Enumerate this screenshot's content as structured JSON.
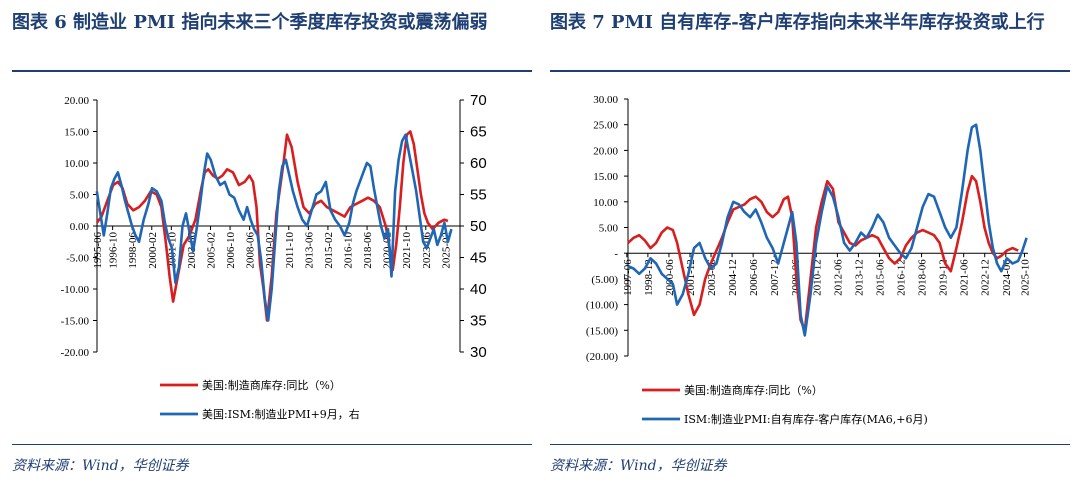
{
  "left": {
    "title": "图表 6 制造业 PMI 指向未来三个季度库存投资或震荡偏弱",
    "source": "资料来源：Wind，华创证券",
    "chart_data": {
      "type": "line",
      "title": "",
      "y_left": {
        "min": -20,
        "max": 20,
        "ticks": [
          "20.00",
          "15.00",
          "10.00",
          "5.00",
          "0.00",
          "-5.00",
          "-10.00",
          "-15.00",
          "-20.00"
        ]
      },
      "y_right": {
        "min": 30,
        "max": 70,
        "ticks": [
          "70",
          "65",
          "60",
          "55",
          "50",
          "45",
          "40",
          "35",
          "30"
        ]
      },
      "x_range": [
        1995.42,
        2026.33
      ],
      "x_ticks": [
        "1995-06",
        "1996-10",
        "1998-06",
        "2000-02",
        "2001-10",
        "2003-06",
        "2005-02",
        "2006-10",
        "2008-06",
        "2010-02",
        "2011-10",
        "2013-06",
        "2015-02",
        "2016-10",
        "2018-06",
        "2020-02",
        "2021-10",
        "2023-06",
        "2025-02"
      ],
      "series": [
        {
          "name": "美国:制造商库存:同比（%）",
          "color": "#d81e1e",
          "axis": "left",
          "x": [
            1995.4,
            1995.8,
            1996.3,
            1996.8,
            1997.2,
            1997.6,
            1998.0,
            1998.5,
            1999.0,
            1999.5,
            2000.0,
            2000.5,
            2000.9,
            2001.3,
            2001.6,
            2001.9,
            2002.3,
            2002.8,
            2003.3,
            2003.8,
            2004.3,
            2004.6,
            2004.9,
            2005.3,
            2005.7,
            2006.1,
            2006.5,
            2007.0,
            2007.5,
            2008.0,
            2008.4,
            2008.7,
            2009.0,
            2009.3,
            2009.6,
            2009.9,
            2010.3,
            2010.7,
            2011.0,
            2011.3,
            2011.6,
            2012.0,
            2012.5,
            2013.0,
            2013.5,
            2014.0,
            2014.5,
            2015.0,
            2015.5,
            2016.0,
            2016.5,
            2017.0,
            2017.5,
            2018.0,
            2018.5,
            2019.0,
            2019.5,
            2020.0,
            2020.3,
            2020.6,
            2020.9,
            2021.2,
            2021.5,
            2021.8,
            2022.1,
            2022.4,
            2022.7,
            2023.0,
            2023.3,
            2023.6,
            2024.0,
            2024.5,
            2025.0,
            2025.3
          ],
          "y": [
            0.5,
            1.5,
            4.0,
            6.5,
            7.0,
            6.0,
            3.5,
            2.5,
            3.0,
            4.0,
            5.5,
            5.0,
            3.0,
            -3.0,
            -8.0,
            -12.0,
            -8.0,
            -3.0,
            -1.5,
            1.0,
            6.0,
            8.5,
            9.0,
            8.0,
            7.5,
            8.0,
            9.0,
            8.5,
            6.5,
            7.0,
            8.0,
            7.0,
            3.0,
            -6.0,
            -10.0,
            -15.0,
            -8.0,
            2.0,
            6.0,
            10.0,
            14.5,
            12.5,
            7.0,
            3.0,
            2.0,
            3.5,
            4.0,
            3.0,
            2.5,
            2.0,
            1.5,
            3.0,
            3.5,
            4.0,
            4.5,
            4.0,
            3.0,
            0.0,
            -3.0,
            -7.0,
            -3.0,
            3.0,
            10.0,
            14.5,
            15.0,
            13.0,
            9.0,
            5.0,
            2.0,
            0.5,
            -0.5,
            0.5,
            1.0,
            0.8
          ]
        },
        {
          "name": "美国:ISM:制造业PMI+9月，右",
          "color": "#1f66b5",
          "axis": "right",
          "x": [
            1995.4,
            1995.7,
            1996.0,
            1996.3,
            1996.6,
            1996.9,
            1997.2,
            1997.5,
            1997.8,
            1998.1,
            1998.4,
            1998.7,
            1999.0,
            1999.4,
            1999.8,
            2000.1,
            2000.5,
            2000.9,
            2001.2,
            2001.5,
            2001.8,
            2002.1,
            2002.4,
            2002.7,
            2003.0,
            2003.3,
            2003.6,
            2003.9,
            2004.2,
            2004.5,
            2004.8,
            2005.1,
            2005.5,
            2005.9,
            2006.3,
            2006.7,
            2007.1,
            2007.5,
            2007.9,
            2008.2,
            2008.5,
            2008.8,
            2009.1,
            2009.4,
            2009.7,
            2010.0,
            2010.3,
            2010.6,
            2010.9,
            2011.2,
            2011.5,
            2011.8,
            2012.1,
            2012.5,
            2012.9,
            2013.3,
            2013.7,
            2014.1,
            2014.5,
            2014.9,
            2015.3,
            2015.7,
            2016.1,
            2016.5,
            2016.9,
            2017.2,
            2017.5,
            2017.8,
            2018.1,
            2018.4,
            2018.7,
            2019.0,
            2019.3,
            2019.6,
            2019.9,
            2020.2,
            2020.5,
            2020.8,
            2021.1,
            2021.4,
            2021.7,
            2022.0,
            2022.3,
            2022.6,
            2022.9,
            2023.2,
            2023.5,
            2023.8,
            2024.1,
            2024.4,
            2024.7,
            2025.0,
            2025.3,
            2025.6
          ],
          "y": [
            55.5,
            52.0,
            48.5,
            52.0,
            56.0,
            57.5,
            58.5,
            56.5,
            54.0,
            52.0,
            50.0,
            48.5,
            47.5,
            51.0,
            53.5,
            56.0,
            55.5,
            54.0,
            50.5,
            48.0,
            46.5,
            41.0,
            43.5,
            50.0,
            52.0,
            49.0,
            46.0,
            49.5,
            53.5,
            58.0,
            61.5,
            60.5,
            58.0,
            56.5,
            57.0,
            55.0,
            54.5,
            52.5,
            51.0,
            53.0,
            51.0,
            49.5,
            48.5,
            44.5,
            38.5,
            35.0,
            40.0,
            48.0,
            55.5,
            59.5,
            60.5,
            58.0,
            55.5,
            53.0,
            51.0,
            50.0,
            52.5,
            55.0,
            55.5,
            57.0,
            52.5,
            51.0,
            50.0,
            48.5,
            50.5,
            53.5,
            55.5,
            57.0,
            58.5,
            60.0,
            59.5,
            56.0,
            53.0,
            50.0,
            48.0,
            49.5,
            42.0,
            55.5,
            60.5,
            63.5,
            64.5,
            61.5,
            58.5,
            55.5,
            51.5,
            47.5,
            46.5,
            48.0,
            49.5,
            47.0,
            48.5,
            50.5,
            47.5,
            49.5
          ]
        }
      ],
      "legend_position": "bottom"
    }
  },
  "right": {
    "title": "图表 7 PMI 自有库存-客户库存指向未来半年库存投资或上行",
    "source": "资料来源：Wind，华创证券",
    "chart_data": {
      "type": "line",
      "title": "",
      "y": {
        "min": -20,
        "max": 30,
        "ticks": [
          "30.00",
          "25.00",
          "20.00",
          "15.00",
          "10.00",
          "5.00",
          "-",
          "(5.00)",
          "(10.00)",
          "(15.00)",
          "(20.00)"
        ]
      },
      "x_range": [
        1997.5,
        2026.0
      ],
      "x_ticks": [
        "1997-06",
        "1998-12",
        "2000-06",
        "2001-12",
        "2003-06",
        "2004-12",
        "2006-06",
        "2007-12",
        "2009-06",
        "2010-12",
        "2012-06",
        "2013-12",
        "2015-06",
        "2016-12",
        "2018-06",
        "2019-12",
        "2021-06",
        "2022-12",
        "2024-06",
        "2025-10"
      ],
      "series": [
        {
          "name": "美国:制造商库存:同比（%）",
          "color": "#d81e1e",
          "x": [
            1997.5,
            1997.9,
            1998.3,
            1998.7,
            1999.1,
            1999.5,
            1999.9,
            2000.3,
            2000.7,
            2001.0,
            2001.4,
            2001.8,
            2002.2,
            2002.6,
            2003.0,
            2003.4,
            2003.8,
            2004.2,
            2004.6,
            2005.0,
            2005.4,
            2005.8,
            2006.2,
            2006.6,
            2007.0,
            2007.4,
            2007.8,
            2008.2,
            2008.6,
            2008.9,
            2009.2,
            2009.5,
            2009.8,
            2010.1,
            2010.5,
            2010.9,
            2011.3,
            2011.7,
            2012.1,
            2012.5,
            2012.9,
            2013.3,
            2013.7,
            2014.1,
            2014.5,
            2014.9,
            2015.3,
            2015.7,
            2016.1,
            2016.5,
            2016.9,
            2017.3,
            2017.7,
            2018.1,
            2018.5,
            2018.9,
            2019.3,
            2019.7,
            2020.1,
            2020.5,
            2020.9,
            2021.3,
            2021.7,
            2022.0,
            2022.3,
            2022.6,
            2022.9,
            2023.2,
            2023.5,
            2023.8,
            2024.1,
            2024.5,
            2024.9,
            2025.3
          ],
          "y": [
            2.0,
            3.0,
            3.5,
            2.5,
            1.0,
            2.0,
            4.0,
            5.0,
            4.5,
            2.0,
            -3.0,
            -8.0,
            -12.0,
            -10.0,
            -5.0,
            -2.0,
            0.5,
            3.0,
            6.0,
            8.5,
            9.0,
            9.5,
            10.5,
            11.0,
            10.0,
            8.0,
            7.0,
            8.0,
            10.5,
            11.0,
            7.0,
            -5.0,
            -13.0,
            -15.0,
            -5.0,
            5.0,
            10.0,
            14.0,
            12.5,
            6.0,
            4.0,
            2.0,
            1.5,
            2.5,
            3.0,
            3.5,
            3.0,
            1.0,
            -1.0,
            -2.0,
            -1.0,
            1.5,
            3.0,
            4.0,
            4.5,
            4.0,
            3.5,
            2.0,
            -2.0,
            -3.5,
            1.0,
            6.0,
            12.0,
            15.0,
            14.0,
            10.0,
            5.0,
            2.0,
            0.0,
            -1.0,
            -0.5,
            0.5,
            1.0,
            0.5
          ]
        },
        {
          "name": "ISM:制造业PMI:自有库存-客户库存(MA6,+6月)",
          "color": "#1f66b5",
          "x": [
            1997.5,
            1997.9,
            1998.3,
            1998.7,
            1999.1,
            1999.5,
            1999.9,
            2000.3,
            2000.7,
            2001.0,
            2001.4,
            2001.8,
            2002.2,
            2002.6,
            2003.0,
            2003.4,
            2003.8,
            2004.2,
            2004.6,
            2005.0,
            2005.4,
            2005.8,
            2006.2,
            2006.6,
            2007.0,
            2007.4,
            2007.8,
            2008.2,
            2008.6,
            2008.9,
            2009.2,
            2009.5,
            2009.8,
            2010.1,
            2010.5,
            2010.9,
            2011.3,
            2011.7,
            2012.1,
            2012.5,
            2012.9,
            2013.3,
            2013.7,
            2014.1,
            2014.5,
            2014.9,
            2015.3,
            2015.7,
            2016.1,
            2016.5,
            2016.9,
            2017.3,
            2017.7,
            2018.1,
            2018.5,
            2018.9,
            2019.3,
            2019.7,
            2020.1,
            2020.5,
            2020.9,
            2021.3,
            2021.7,
            2022.0,
            2022.3,
            2022.6,
            2022.9,
            2023.2,
            2023.5,
            2023.8,
            2024.1,
            2024.5,
            2024.9,
            2025.3,
            2025.6,
            2025.9
          ],
          "y": [
            -2.5,
            -3.0,
            -4.0,
            -3.0,
            -1.0,
            -2.0,
            -4.0,
            -5.0,
            -6.0,
            -10.0,
            -8.0,
            -4.0,
            1.0,
            2.0,
            -1.0,
            -3.0,
            -2.0,
            2.0,
            7.0,
            10.0,
            9.5,
            8.0,
            7.0,
            8.5,
            6.0,
            3.0,
            1.0,
            -2.0,
            2.0,
            5.0,
            8.0,
            2.0,
            -12.0,
            -16.0,
            -8.0,
            2.0,
            8.0,
            13.0,
            11.0,
            7.0,
            2.0,
            0.5,
            2.0,
            4.0,
            3.0,
            5.0,
            7.5,
            6.0,
            3.0,
            1.5,
            0.0,
            -1.0,
            1.0,
            5.0,
            9.0,
            11.5,
            11.0,
            8.0,
            5.0,
            3.0,
            5.0,
            12.0,
            20.0,
            24.5,
            25.0,
            20.0,
            13.0,
            6.0,
            1.0,
            -2.0,
            -3.5,
            -1.0,
            -2.0,
            -1.5,
            0.5,
            3.0
          ]
        }
      ],
      "legend_position": "bottom"
    }
  }
}
